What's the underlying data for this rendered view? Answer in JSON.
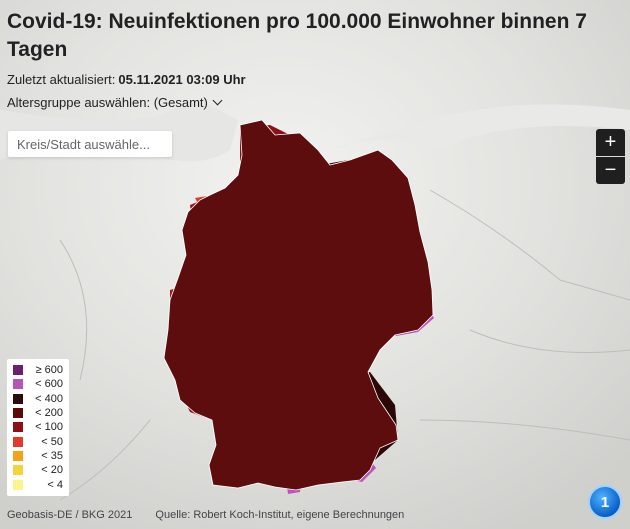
{
  "header": {
    "title": "Covid-19: Neuinfektionen pro 100.000 Einwohner binnen 7 Tagen",
    "updated_label": "Zuletzt aktualisiert:",
    "updated_value": "05.11.2021 03:09 Uhr",
    "age_select_label": "Altersgruppe auswählen: (Gesamt)"
  },
  "search": {
    "placeholder": "Kreis/Stadt auswähle..."
  },
  "zoom": {
    "in": "+",
    "out": "−"
  },
  "legend": [
    {
      "label": "≥ 600",
      "color": "#6b1f6e"
    },
    {
      "label": "< 600",
      "color": "#b556b8"
    },
    {
      "label": "< 400",
      "color": "#2b0b0b"
    },
    {
      "label": "< 200",
      "color": "#5a0a0a"
    },
    {
      "label": "< 100",
      "color": "#8e0f14"
    },
    {
      "label": "< 50",
      "color": "#e03a2a"
    },
    {
      "label": "< 35",
      "color": "#f3a21c"
    },
    {
      "label": "< 20",
      "color": "#f5d43a"
    },
    {
      "label": "< 4",
      "color": "#fbf58a"
    }
  ],
  "footer": {
    "geo_source": "Geobasis-DE / BKG 2021",
    "data_source": "Quelle: Robert Koch-Institut, eigene Berechnungen"
  },
  "logo": {
    "text": "1"
  }
}
